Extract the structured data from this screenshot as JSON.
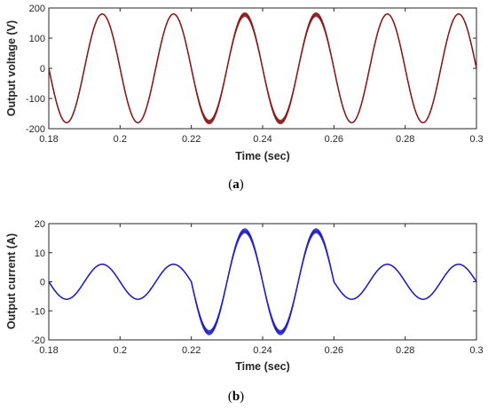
{
  "chart_data": [
    {
      "type": "line",
      "xlabel": "Time (sec)",
      "ylabel": "Output voltage (V)",
      "caption": "a",
      "xlim": [
        0.18,
        0.3
      ],
      "ylim": [
        -200,
        200
      ],
      "xticks": [
        0.18,
        0.2,
        0.22,
        0.24,
        0.26,
        0.28,
        0.3
      ],
      "xtick_labels": [
        "0.18",
        "0.2",
        "0.22",
        "0.24",
        "0.26",
        "0.28",
        "0.3"
      ],
      "yticks": [
        -200,
        -100,
        0,
        100,
        200
      ],
      "ytick_labels": [
        "-200",
        "-100",
        "0",
        "100",
        "200"
      ],
      "grid": false,
      "series": [
        {
          "color": "#8b1a1a",
          "waveform": "sine",
          "frequency_hz": 50,
          "x_start": 0.18,
          "x_end": 0.3,
          "first_peak_x": 0.195,
          "segments": [
            {
              "x_start": 0.18,
              "x_end": 0.22,
              "amplitude": 180,
              "band": 0
            },
            {
              "x_start": 0.22,
              "x_end": 0.26,
              "amplitude": 178,
              "band": 6
            },
            {
              "x_start": 0.26,
              "x_end": 0.3,
              "amplitude": 180,
              "band": 0
            }
          ]
        }
      ]
    },
    {
      "type": "line",
      "xlabel": "Time (sec)",
      "ylabel": "Output current (A)",
      "caption": "b",
      "xlim": [
        0.18,
        0.3
      ],
      "ylim": [
        -20,
        20
      ],
      "xticks": [
        0.18,
        0.2,
        0.22,
        0.24,
        0.26,
        0.28,
        0.3
      ],
      "xtick_labels": [
        "0.18",
        "0.2",
        "0.22",
        "0.24",
        "0.26",
        "0.28",
        "0.3"
      ],
      "yticks": [
        -20,
        -10,
        0,
        10,
        20
      ],
      "ytick_labels": [
        "-20",
        "-10",
        "0",
        "10",
        "20"
      ],
      "grid": false,
      "series": [
        {
          "color": "#1f1fc8",
          "waveform": "sine",
          "frequency_hz": 50,
          "x_start": 0.18,
          "x_end": 0.3,
          "first_peak_x": 0.195,
          "segments": [
            {
              "x_start": 0.18,
              "x_end": 0.22,
              "amplitude": 6,
              "band": 0
            },
            {
              "x_start": 0.22,
              "x_end": 0.26,
              "amplitude": 17.5,
              "band": 0.7
            },
            {
              "x_start": 0.26,
              "x_end": 0.3,
              "amplitude": 6,
              "band": 0
            }
          ]
        }
      ]
    }
  ]
}
